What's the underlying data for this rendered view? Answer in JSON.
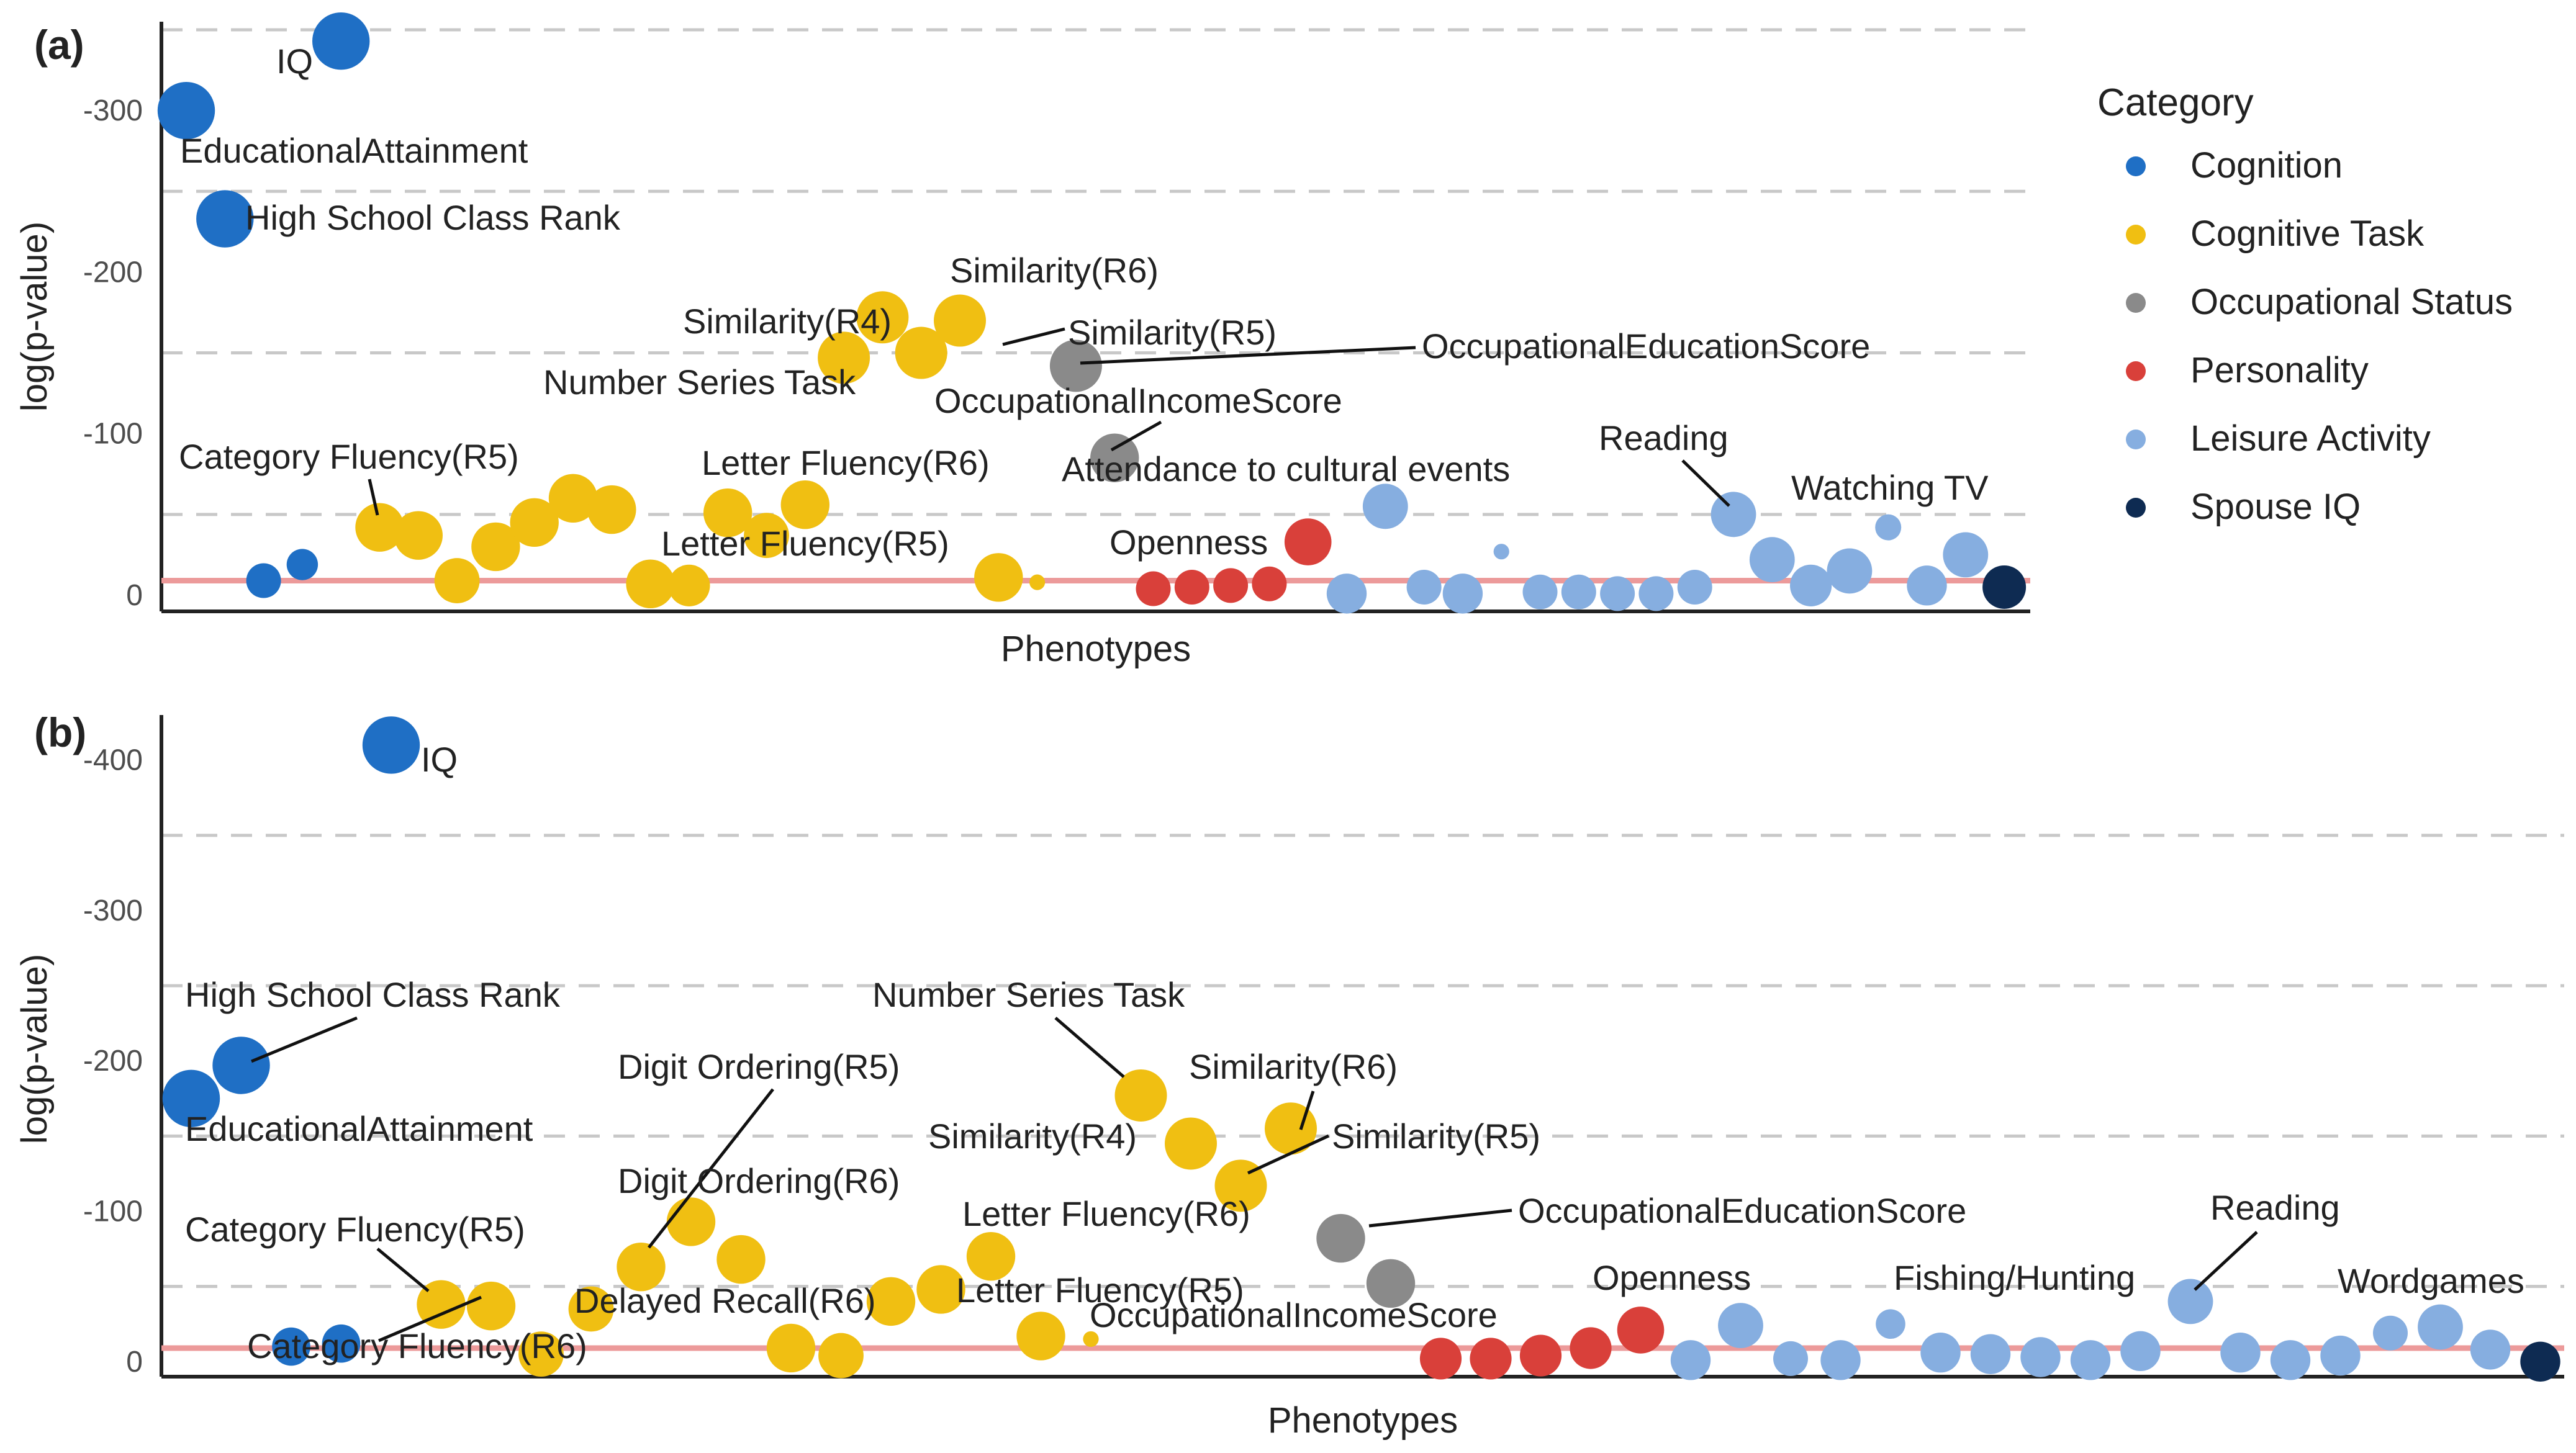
{
  "legend": {
    "title": "Category",
    "items": [
      {
        "name": "Cognition",
        "color": "#1f6fc5"
      },
      {
        "name": "Cognitive Task",
        "color": "#f0bf12"
      },
      {
        "name": "Occupational Status",
        "color": "#8a8a8a"
      },
      {
        "name": "Personality",
        "color": "#d9403a"
      },
      {
        "name": "Leisure Activity",
        "color": "#86aee0"
      },
      {
        "name": "Spouse IQ",
        "color": "#0e2b52"
      }
    ]
  },
  "chart_data": [
    {
      "type": "scatter",
      "panel": "(a)",
      "xlabel": "Phenotypes",
      "ylabel": "log(p-value)",
      "ylim": [
        -10,
        355
      ],
      "threshold": 9,
      "y_ticks": [
        {
          "v": 300,
          "label": "-300"
        },
        {
          "v": 200,
          "label": "-200"
        },
        {
          "v": 100,
          "label": "-100"
        },
        {
          "v": 0,
          "label": "0"
        }
      ],
      "gridlines": [
        350,
        250,
        150,
        50
      ],
      "points": [
        {
          "x": 1,
          "y": 300,
          "cat": 0,
          "size": 3.3
        },
        {
          "x": 2,
          "y": 233,
          "cat": 0,
          "size": 3.3
        },
        {
          "x": 3,
          "y": 9,
          "cat": 0,
          "size": 2.0
        },
        {
          "x": 4,
          "y": 19,
          "cat": 0,
          "size": 1.8
        },
        {
          "x": 5,
          "y": 343,
          "cat": 0,
          "size": 3.3
        },
        {
          "x": 6,
          "y": 42,
          "cat": 1,
          "size": 2.8
        },
        {
          "x": 7,
          "y": 37,
          "cat": 1,
          "size": 2.8
        },
        {
          "x": 8,
          "y": 9,
          "cat": 1,
          "size": 2.6
        },
        {
          "x": 9,
          "y": 30,
          "cat": 1,
          "size": 2.8
        },
        {
          "x": 10,
          "y": 45,
          "cat": 1,
          "size": 2.8
        },
        {
          "x": 11,
          "y": 60,
          "cat": 1,
          "size": 2.8
        },
        {
          "x": 12,
          "y": 53,
          "cat": 1,
          "size": 2.8
        },
        {
          "x": 13,
          "y": 7,
          "cat": 1,
          "size": 2.8
        },
        {
          "x": 14,
          "y": 6,
          "cat": 1,
          "size": 2.4
        },
        {
          "x": 15,
          "y": 51,
          "cat": 1,
          "size": 2.8
        },
        {
          "x": 16,
          "y": 37,
          "cat": 1,
          "size": 2.6
        },
        {
          "x": 17,
          "y": 56,
          "cat": 1,
          "size": 2.8
        },
        {
          "x": 18,
          "y": 147,
          "cat": 1,
          "size": 3.0
        },
        {
          "x": 19,
          "y": 172,
          "cat": 1,
          "size": 3.0
        },
        {
          "x": 20,
          "y": 150,
          "cat": 1,
          "size": 3.0
        },
        {
          "x": 21,
          "y": 170,
          "cat": 1,
          "size": 3.0
        },
        {
          "x": 22,
          "y": 11,
          "cat": 1,
          "size": 2.8
        },
        {
          "x": 23,
          "y": 8,
          "cat": 1,
          "size": 0.9
        },
        {
          "x": 24,
          "y": 142,
          "cat": 2,
          "size": 3.0
        },
        {
          "x": 25,
          "y": 85,
          "cat": 2,
          "size": 2.8
        },
        {
          "x": 26,
          "y": 4,
          "cat": 3,
          "size": 2.0
        },
        {
          "x": 27,
          "y": 5,
          "cat": 3,
          "size": 2.0
        },
        {
          "x": 28,
          "y": 6,
          "cat": 3,
          "size": 2.0
        },
        {
          "x": 29,
          "y": 7,
          "cat": 3,
          "size": 2.0
        },
        {
          "x": 30,
          "y": 33,
          "cat": 3,
          "size": 2.7
        },
        {
          "x": 31,
          "y": 1,
          "cat": 4,
          "size": 2.3
        },
        {
          "x": 32,
          "y": 55,
          "cat": 4,
          "size": 2.6
        },
        {
          "x": 33,
          "y": 5,
          "cat": 4,
          "size": 2.0
        },
        {
          "x": 34,
          "y": 1,
          "cat": 4,
          "size": 2.3
        },
        {
          "x": 35,
          "y": 27,
          "cat": 4,
          "size": 0.9
        },
        {
          "x": 36,
          "y": 2,
          "cat": 4,
          "size": 2.0
        },
        {
          "x": 37,
          "y": 2,
          "cat": 4,
          "size": 2.0
        },
        {
          "x": 38,
          "y": 1,
          "cat": 4,
          "size": 2.0
        },
        {
          "x": 39,
          "y": 1,
          "cat": 4,
          "size": 2.0
        },
        {
          "x": 40,
          "y": 5,
          "cat": 4,
          "size": 2.0
        },
        {
          "x": 41,
          "y": 50,
          "cat": 4,
          "size": 2.6
        },
        {
          "x": 42,
          "y": 22,
          "cat": 4,
          "size": 2.6
        },
        {
          "x": 43,
          "y": 6,
          "cat": 4,
          "size": 2.4
        },
        {
          "x": 44,
          "y": 15,
          "cat": 4,
          "size": 2.6
        },
        {
          "x": 45,
          "y": 42,
          "cat": 4,
          "size": 1.5
        },
        {
          "x": 46,
          "y": 6,
          "cat": 4,
          "size": 2.3
        },
        {
          "x": 47,
          "y": 25,
          "cat": 4,
          "size": 2.6
        },
        {
          "x": 48,
          "y": 5,
          "cat": 5,
          "size": 2.5
        }
      ],
      "labels": [
        {
          "text": "IQ",
          "point": 5
        },
        {
          "text": "EducationalAttainment",
          "point": 1
        },
        {
          "text": "High School Class Rank",
          "point": 2
        },
        {
          "text": "Similarity(R6)",
          "point": 21
        },
        {
          "text": "Similarity(R4)",
          "point": 19
        },
        {
          "text": "Similarity(R5)",
          "point": 20
        },
        {
          "text": "OccupationalEducationScore",
          "point": 24
        },
        {
          "text": "Number Series Task",
          "point": 18
        },
        {
          "text": "OccupationalIncomeScore",
          "point": 25
        },
        {
          "text": "Category Fluency(R5)",
          "point": 6
        },
        {
          "text": "Letter Fluency(R6)",
          "point": 16
        },
        {
          "text": "Attendance to cultural events",
          "point": 32
        },
        {
          "text": "Reading",
          "point": 41
        },
        {
          "text": "Watching TV",
          "point": 45
        },
        {
          "text": "Letter Fluency(R5)",
          "point": 22
        },
        {
          "text": "Openness",
          "point": 30
        }
      ]
    },
    {
      "type": "scatter",
      "panel": "(b)",
      "xlabel": "Phenotypes",
      "ylabel": "log(p-value)",
      "ylim": [
        -10,
        430
      ],
      "threshold": 9,
      "y_ticks": [
        {
          "v": 400,
          "label": "-400"
        },
        {
          "v": 300,
          "label": "-300"
        },
        {
          "v": 200,
          "label": "-200"
        },
        {
          "v": 100,
          "label": "-100"
        },
        {
          "v": 0,
          "label": "0"
        }
      ],
      "gridlines": [
        350,
        250,
        150,
        50
      ],
      "points": [
        {
          "x": 1,
          "y": 175,
          "cat": 0,
          "size": 3.3
        },
        {
          "x": 2,
          "y": 197,
          "cat": 0,
          "size": 3.3
        },
        {
          "x": 3,
          "y": 10,
          "cat": 0,
          "size": 2.2
        },
        {
          "x": 4,
          "y": 12,
          "cat": 0,
          "size": 2.2
        },
        {
          "x": 5,
          "y": 410,
          "cat": 0,
          "size": 3.3
        },
        {
          "x": 6,
          "y": 38,
          "cat": 1,
          "size": 2.8
        },
        {
          "x": 7,
          "y": 37,
          "cat": 1,
          "size": 2.8
        },
        {
          "x": 8,
          "y": 5,
          "cat": 1,
          "size": 2.6
        },
        {
          "x": 9,
          "y": 35,
          "cat": 1,
          "size": 2.6
        },
        {
          "x": 10,
          "y": 63,
          "cat": 1,
          "size": 2.8
        },
        {
          "x": 11,
          "y": 93,
          "cat": 1,
          "size": 2.8
        },
        {
          "x": 12,
          "y": 68,
          "cat": 1,
          "size": 2.8
        },
        {
          "x": 13,
          "y": 9,
          "cat": 1,
          "size": 2.8
        },
        {
          "x": 14,
          "y": 4,
          "cat": 1,
          "size": 2.6
        },
        {
          "x": 15,
          "y": 40,
          "cat": 1,
          "size": 2.8
        },
        {
          "x": 16,
          "y": 48,
          "cat": 1,
          "size": 2.8
        },
        {
          "x": 17,
          "y": 70,
          "cat": 1,
          "size": 2.8
        },
        {
          "x": 18,
          "y": 17,
          "cat": 1,
          "size": 2.8
        },
        {
          "x": 19,
          "y": 15,
          "cat": 1,
          "size": 0.9
        },
        {
          "x": 20,
          "y": 177,
          "cat": 1,
          "size": 3.0
        },
        {
          "x": 21,
          "y": 145,
          "cat": 1,
          "size": 3.0
        },
        {
          "x": 22,
          "y": 117,
          "cat": 1,
          "size": 3.0
        },
        {
          "x": 23,
          "y": 155,
          "cat": 1,
          "size": 3.0
        },
        {
          "x": 24,
          "y": 82,
          "cat": 2,
          "size": 2.8
        },
        {
          "x": 25,
          "y": 52,
          "cat": 2,
          "size": 2.8
        },
        {
          "x": 26,
          "y": 2,
          "cat": 3,
          "size": 2.4
        },
        {
          "x": 27,
          "y": 2,
          "cat": 3,
          "size": 2.4
        },
        {
          "x": 28,
          "y": 4,
          "cat": 3,
          "size": 2.4
        },
        {
          "x": 29,
          "y": 9,
          "cat": 3,
          "size": 2.4
        },
        {
          "x": 30,
          "y": 21,
          "cat": 3,
          "size": 2.7
        },
        {
          "x": 31,
          "y": 1,
          "cat": 4,
          "size": 2.3
        },
        {
          "x": 32,
          "y": 24,
          "cat": 4,
          "size": 2.6
        },
        {
          "x": 33,
          "y": 2,
          "cat": 4,
          "size": 2.0
        },
        {
          "x": 34,
          "y": 1,
          "cat": 4,
          "size": 2.3
        },
        {
          "x": 35,
          "y": 25,
          "cat": 4,
          "size": 1.7
        },
        {
          "x": 36,
          "y": 6,
          "cat": 4,
          "size": 2.3
        },
        {
          "x": 37,
          "y": 5,
          "cat": 4,
          "size": 2.3
        },
        {
          "x": 38,
          "y": 3,
          "cat": 4,
          "size": 2.3
        },
        {
          "x": 39,
          "y": 1,
          "cat": 4,
          "size": 2.3
        },
        {
          "x": 40,
          "y": 7,
          "cat": 4,
          "size": 2.3
        },
        {
          "x": 41,
          "y": 40,
          "cat": 4,
          "size": 2.6
        },
        {
          "x": 42,
          "y": 6,
          "cat": 4,
          "size": 2.3
        },
        {
          "x": 43,
          "y": 1,
          "cat": 4,
          "size": 2.3
        },
        {
          "x": 44,
          "y": 4,
          "cat": 4,
          "size": 2.3
        },
        {
          "x": 45,
          "y": 19,
          "cat": 4,
          "size": 2.0
        },
        {
          "x": 46,
          "y": 23,
          "cat": 4,
          "size": 2.6
        },
        {
          "x": 47,
          "y": 8,
          "cat": 4,
          "size": 2.3
        },
        {
          "x": 48,
          "y": 0,
          "cat": 5,
          "size": 2.3
        }
      ],
      "labels": [
        {
          "text": "IQ",
          "point": 5
        },
        {
          "text": "High School Class Rank",
          "point": 2
        },
        {
          "text": "EducationalAttainment",
          "point": 1
        },
        {
          "text": "Number Series Task",
          "point": 20
        },
        {
          "text": "Digit Ordering(R5)",
          "point": 10
        },
        {
          "text": "Similarity(R6)",
          "point": 23
        },
        {
          "text": "Similarity(R4)",
          "point": 21
        },
        {
          "text": "Similarity(R5)",
          "point": 22
        },
        {
          "text": "Digit Ordering(R6)",
          "point": 11
        },
        {
          "text": "Letter Fluency(R6)",
          "point": 17
        },
        {
          "text": "OccupationalEducationScore",
          "point": 24
        },
        {
          "text": "Reading",
          "point": 41
        },
        {
          "text": "Category Fluency(R5)",
          "point": 6
        },
        {
          "text": "Openness",
          "point": 30
        },
        {
          "text": "Fishing/Hunting",
          "point": 35
        },
        {
          "text": "Wordgames",
          "point": 46
        },
        {
          "text": "Delayed Recall(R6)",
          "point": 15
        },
        {
          "text": "Letter Fluency(R5)",
          "point": 18
        },
        {
          "text": "OccupationalIncomeScore",
          "point": 25
        },
        {
          "text": "Category Fluency(R6)",
          "point": 7
        }
      ]
    }
  ]
}
